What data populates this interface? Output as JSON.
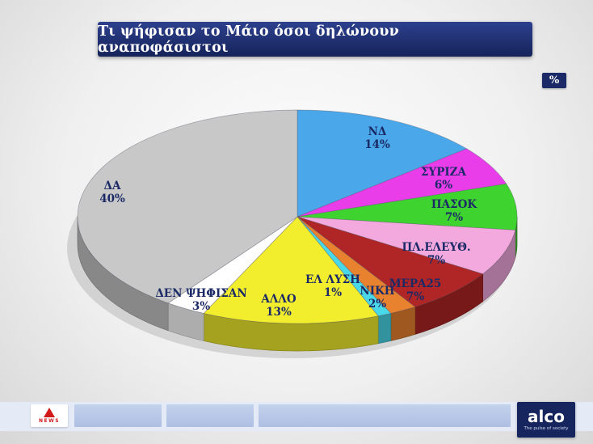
{
  "title": "Τι ψήφισαν το Μάιο όσοι δηλώνουν αναποφάσιστοι",
  "unit_badge": "%",
  "chart_data": {
    "type": "pie",
    "style": "3d",
    "title": "Τι ψήφισαν το Μάιο όσοι δηλώνουν αναποφάσιστοι",
    "unit": "%",
    "start_angle_deg": 0,
    "direction": "clockwise",
    "label_color": "#1b2a66",
    "slices": [
      {
        "label": "ΝΔ",
        "value": 14,
        "display": "14%",
        "color": "#4aa8ea"
      },
      {
        "label": "ΣΥΡΙΖΑ",
        "value": 6,
        "display": "6%",
        "color": "#ea3dea"
      },
      {
        "label": "ΠΑΣΟΚ",
        "value": 7,
        "display": "7%",
        "color": "#3fd32f"
      },
      {
        "label": "ΠΛ.ΕΛΕΥΘ.",
        "value": 7,
        "display": "7%",
        "color": "#f3a8de"
      },
      {
        "label": "ΜΕΡΑ25",
        "value": 7,
        "display": "7%",
        "color": "#b02525"
      },
      {
        "label": "ΝΙΚΗ",
        "value": 2,
        "display": "2%",
        "color": "#e8822f"
      },
      {
        "label": "ΕΛ ΛΥΣΗ",
        "value": 1,
        "display": "1%",
        "color": "#49d8e8"
      },
      {
        "label": "ΑΛΛΟ",
        "value": 13,
        "display": "13%",
        "color": "#f3ee2d"
      },
      {
        "label": "ΔΕΝ ΨΗΦΙΣΑΝ",
        "value": 3,
        "display": "3%",
        "color": "#ffffff"
      },
      {
        "label": "ΔΑ",
        "value": 40,
        "display": "40%",
        "color": "#c8c8c8"
      }
    ]
  },
  "footer": {
    "channel_logo_text": "NEWS",
    "alco_logo": "alco",
    "alco_tagline": "The pulse of society"
  },
  "colors": {
    "banner": "#1c2e6e",
    "accent_navy": "#1b2a66"
  }
}
